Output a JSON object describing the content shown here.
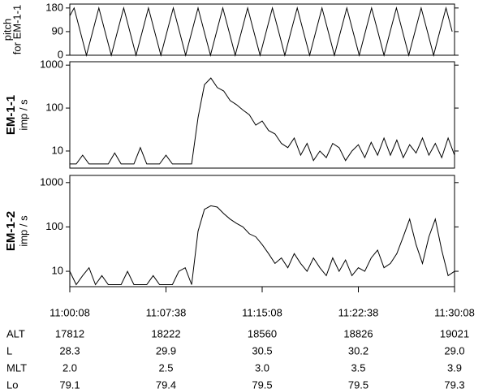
{
  "chart_data": [
    {
      "type": "line",
      "ylabel": [
        "pitch",
        "for EM-1-1"
      ],
      "color": "#000000",
      "xlim": [
        0,
        1800
      ],
      "ylim": [
        0,
        195
      ],
      "yticks": [
        0,
        90,
        180
      ],
      "x": [
        0,
        20,
        49,
        78,
        107,
        136,
        165,
        194,
        223,
        252,
        281,
        310,
        339,
        368,
        397,
        426,
        455,
        484,
        513,
        542,
        571,
        600,
        629,
        658,
        687,
        716,
        745,
        774,
        803,
        832,
        861,
        890,
        919,
        948,
        977,
        1006,
        1035,
        1064,
        1093,
        1122,
        1151,
        1180,
        1209,
        1238,
        1267,
        1296,
        1325,
        1354,
        1383,
        1412,
        1441,
        1470,
        1499,
        1528,
        1557,
        1586,
        1615,
        1644,
        1673,
        1702,
        1731,
        1760,
        1789
      ],
      "values": [
        150,
        180,
        90,
        0,
        90,
        180,
        90,
        0,
        90,
        180,
        90,
        0,
        90,
        180,
        90,
        0,
        90,
        180,
        90,
        0,
        90,
        180,
        90,
        0,
        90,
        180,
        90,
        0,
        90,
        180,
        90,
        0,
        90,
        180,
        90,
        0,
        90,
        180,
        90,
        0,
        90,
        180,
        90,
        0,
        90,
        180,
        90,
        0,
        90,
        180,
        90,
        0,
        90,
        180,
        90,
        0,
        90,
        180,
        90,
        0,
        90,
        180,
        90
      ]
    },
    {
      "type": "line",
      "title": "EM-1-1",
      "ylabel": [
        "imp / s"
      ],
      "color": "#000000",
      "log": true,
      "xlim": [
        0,
        1800
      ],
      "ylim": [
        4,
        1200
      ],
      "yticks": [
        10,
        100,
        1000
      ],
      "x": [
        0,
        30,
        60,
        90,
        120,
        150,
        180,
        210,
        240,
        270,
        300,
        330,
        360,
        390,
        420,
        450,
        480,
        510,
        540,
        570,
        600,
        630,
        660,
        690,
        720,
        750,
        780,
        810,
        840,
        870,
        900,
        930,
        960,
        990,
        1020,
        1050,
        1080,
        1110,
        1140,
        1170,
        1200,
        1230,
        1260,
        1290,
        1320,
        1350,
        1380,
        1410,
        1440,
        1470,
        1500,
        1530,
        1560,
        1590,
        1620,
        1650,
        1680,
        1710,
        1740,
        1770,
        1800
      ],
      "values": [
        5,
        5,
        8,
        5,
        5,
        5,
        5,
        9,
        5,
        5,
        5,
        12,
        5,
        5,
        5,
        8,
        5,
        5,
        5,
        5,
        60,
        350,
        500,
        300,
        250,
        150,
        120,
        90,
        70,
        40,
        50,
        30,
        25,
        15,
        12,
        20,
        8,
        15,
        6,
        10,
        7,
        15,
        12,
        6,
        10,
        14,
        7,
        16,
        8,
        20,
        8,
        18,
        7,
        14,
        9,
        20,
        8,
        15,
        7,
        20,
        8
      ]
    },
    {
      "type": "line",
      "title": "EM-1-2",
      "ylabel": [
        "imp / s"
      ],
      "color": "#000000",
      "log": true,
      "xlim": [
        0,
        1800
      ],
      "ylim": [
        4.5,
        1450
      ],
      "yticks": [
        10,
        100,
        1000
      ],
      "xticks": [
        {
          "value": 0,
          "label": "11:00:08"
        },
        {
          "value": 450,
          "label": "11:07:38"
        },
        {
          "value": 900,
          "label": "11:15:08"
        },
        {
          "value": 1350,
          "label": "11:22:38"
        },
        {
          "value": 1800,
          "label": "11:30:08"
        }
      ],
      "x": [
        0,
        30,
        60,
        90,
        120,
        150,
        180,
        210,
        240,
        270,
        300,
        330,
        360,
        390,
        420,
        450,
        480,
        510,
        540,
        570,
        600,
        630,
        660,
        690,
        720,
        750,
        780,
        810,
        840,
        870,
        900,
        930,
        960,
        990,
        1020,
        1050,
        1080,
        1110,
        1140,
        1170,
        1200,
        1230,
        1260,
        1290,
        1320,
        1350,
        1380,
        1410,
        1440,
        1470,
        1500,
        1530,
        1560,
        1590,
        1620,
        1650,
        1680,
        1710,
        1740,
        1770,
        1800
      ],
      "values": [
        10,
        5,
        8,
        12,
        5,
        8,
        5,
        5,
        5,
        10,
        5,
        5,
        5,
        8,
        5,
        5,
        5,
        10,
        12,
        5,
        80,
        250,
        300,
        280,
        200,
        150,
        120,
        100,
        70,
        60,
        40,
        25,
        15,
        20,
        12,
        25,
        15,
        10,
        20,
        12,
        8,
        20,
        10,
        18,
        8,
        12,
        10,
        20,
        30,
        12,
        15,
        25,
        60,
        150,
        40,
        15,
        60,
        150,
        30,
        8,
        10
      ]
    }
  ],
  "ephemeris": {
    "rows": [
      {
        "label": "ALT",
        "values": [
          "17812",
          "18222",
          "18560",
          "18826",
          "19021"
        ]
      },
      {
        "label": "L",
        "values": [
          "28.3",
          "29.9",
          "30.5",
          "30.2",
          "29.0"
        ]
      },
      {
        "label": "MLT",
        "values": [
          "2.0",
          "2.5",
          "3.0",
          "3.5",
          "3.9"
        ]
      },
      {
        "label": "Lo",
        "values": [
          "79.1",
          "79.4",
          "79.5",
          "79.5",
          "79.3"
        ]
      }
    ]
  }
}
